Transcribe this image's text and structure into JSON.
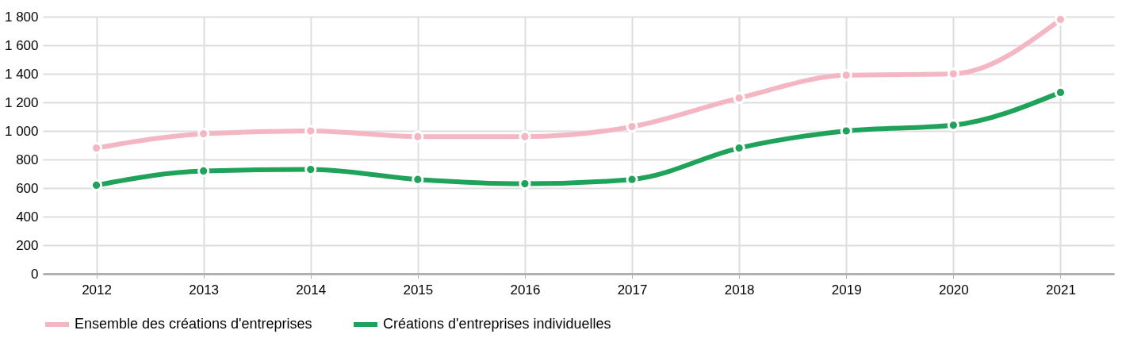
{
  "chart_data": {
    "type": "line",
    "categories": [
      "2012",
      "2013",
      "2014",
      "2015",
      "2016",
      "2017",
      "2018",
      "2019",
      "2020",
      "2021"
    ],
    "series": [
      {
        "name": "Ensemble des créations d'entreprises",
        "color": "#f4b6c2",
        "values": [
          880,
          980,
          1000,
          960,
          960,
          1030,
          1230,
          1390,
          1400,
          1780
        ]
      },
      {
        "name": "Créations d'entreprises individuelles",
        "color": "#1fa35a",
        "values": [
          620,
          720,
          730,
          660,
          630,
          660,
          880,
          1000,
          1040,
          1270
        ]
      }
    ],
    "ylim": [
      0,
      1800
    ],
    "yticks": [
      0,
      200,
      400,
      600,
      800,
      {
        "value": 1000,
        "label": "1 000"
      },
      {
        "value": 1200,
        "label": "1 200"
      },
      {
        "value": 1400,
        "label": "1 400"
      },
      {
        "value": 1600,
        "label": "1 600"
      },
      {
        "value": 1800,
        "label": "1 800"
      }
    ],
    "grid": true,
    "legend": "bottom",
    "marker": "circle",
    "line_style": "solid"
  }
}
